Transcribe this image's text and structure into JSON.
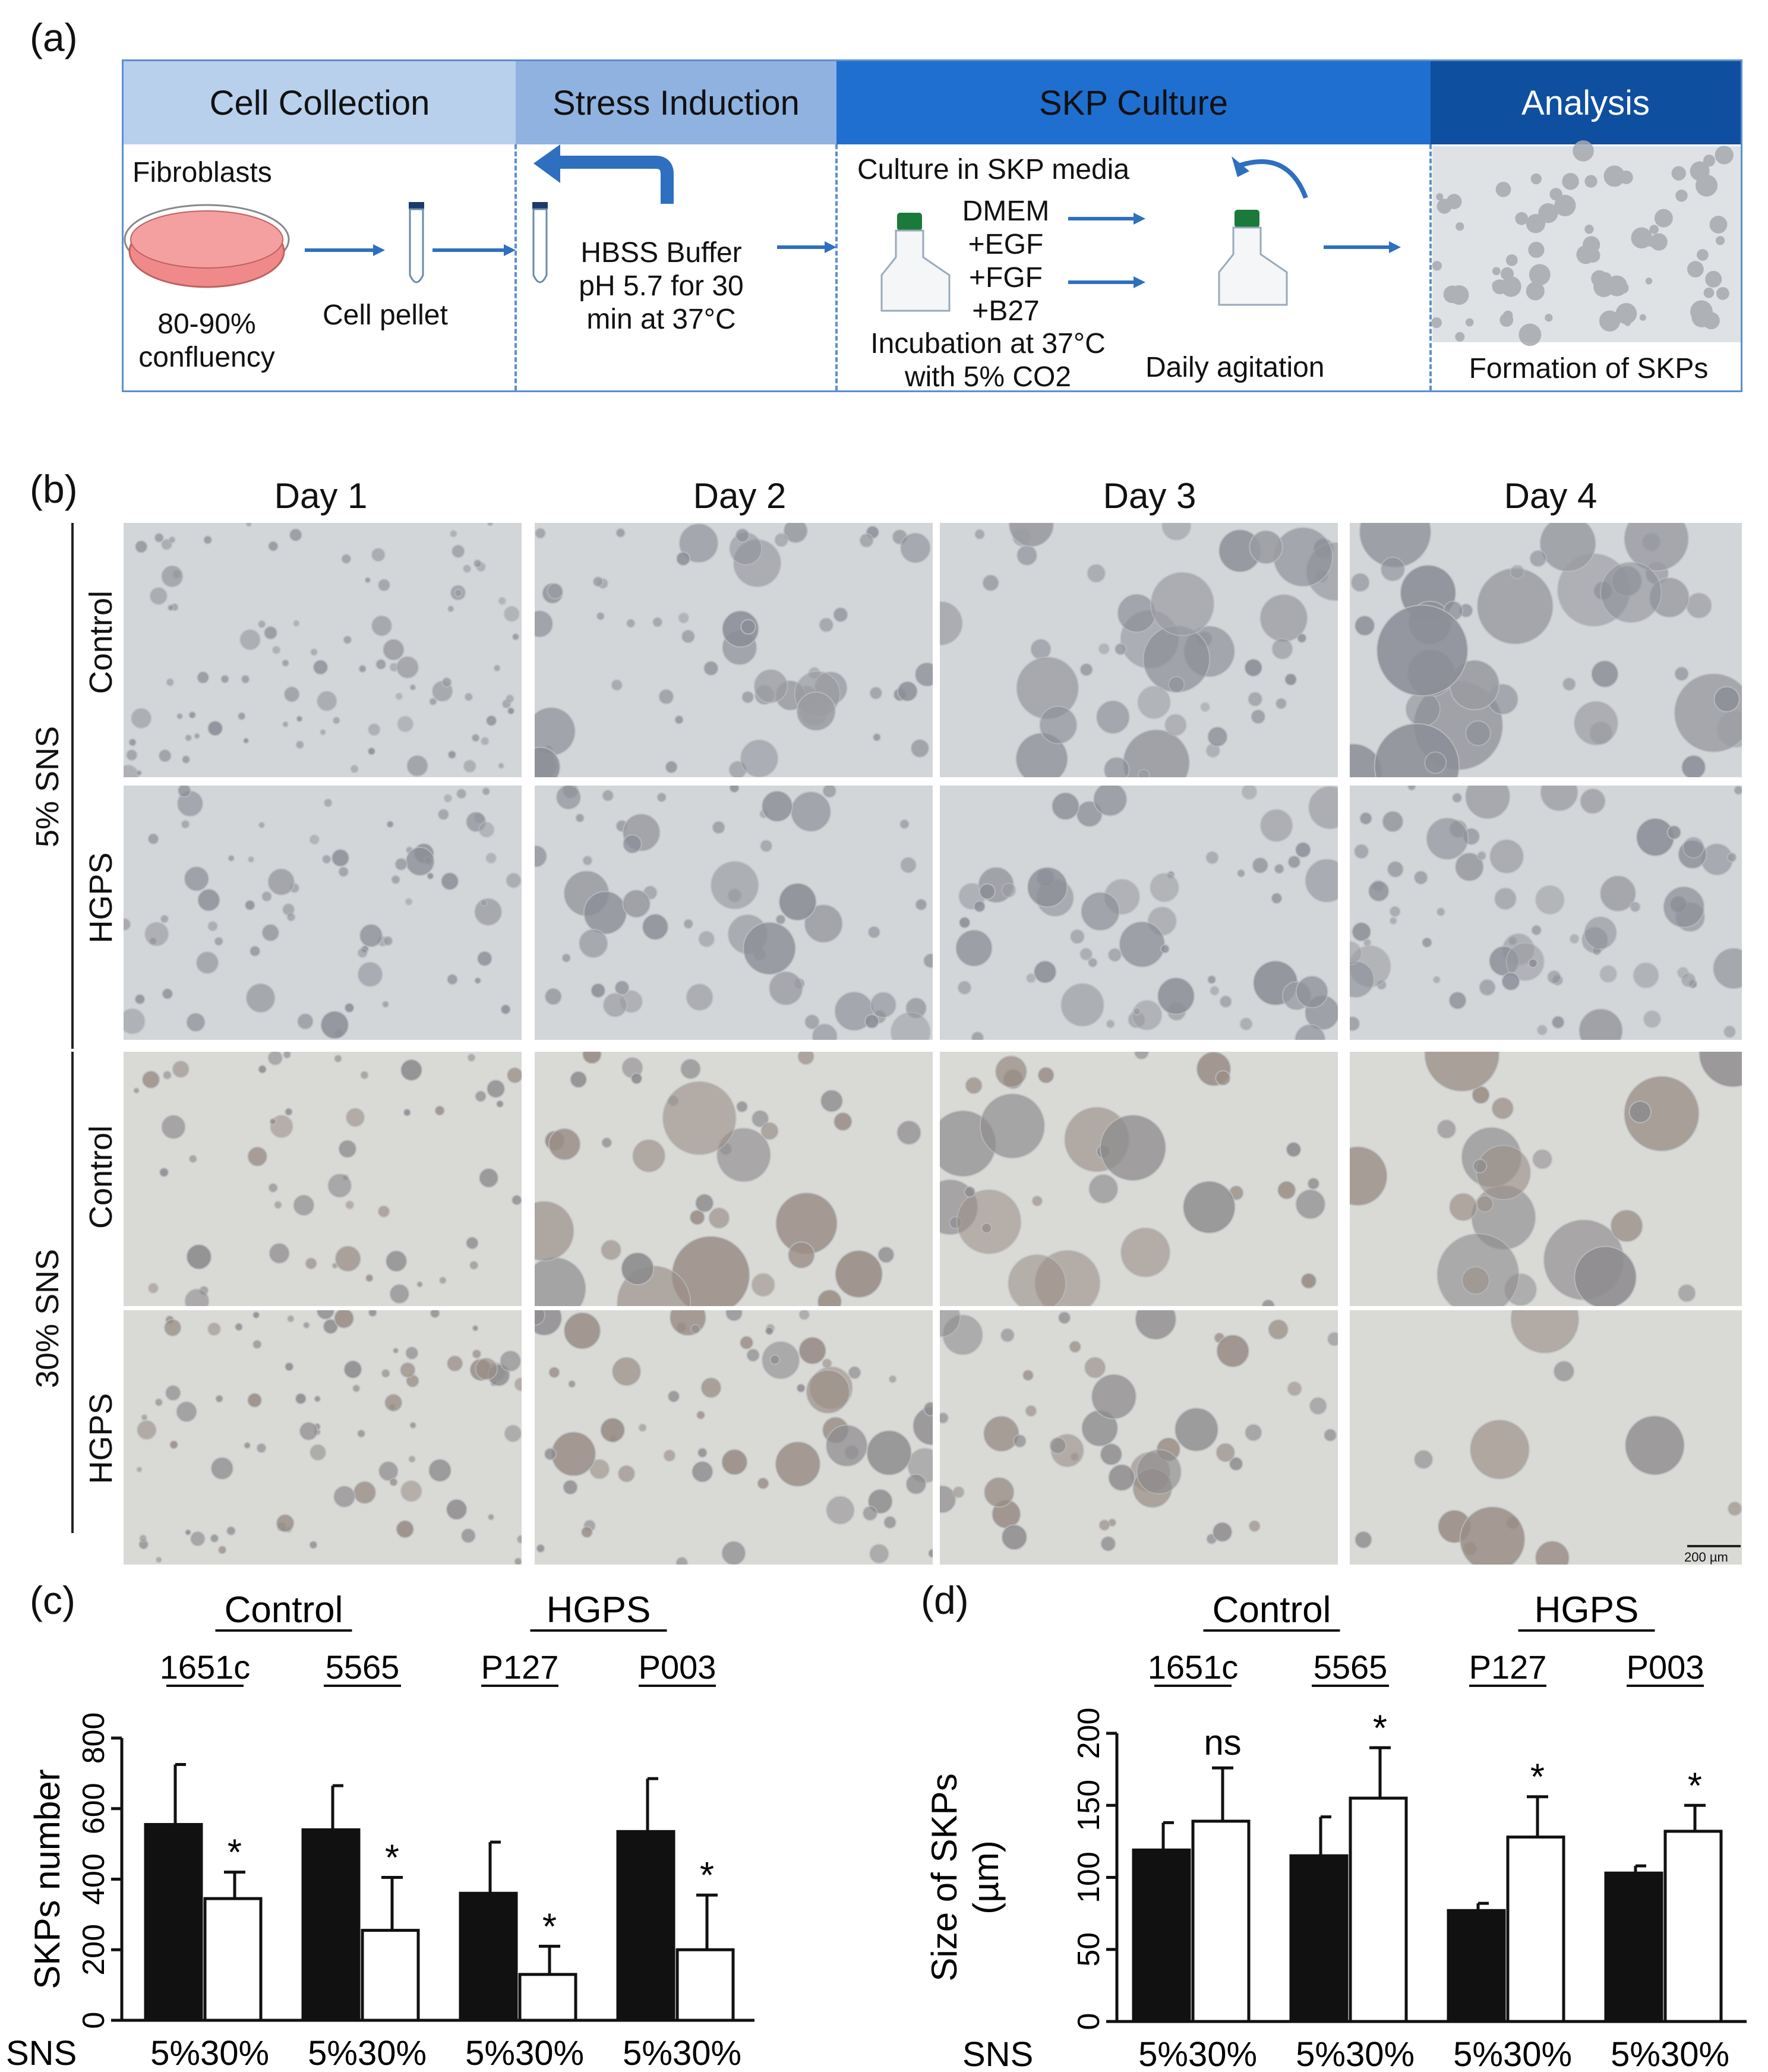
{
  "panel_a": {
    "label": "(a)",
    "headers": [
      "Cell Collection",
      "Stress Induction",
      "SKP Culture",
      "Analysis"
    ],
    "fibroblasts": "Fibroblasts",
    "confluency_line1": "80-90%",
    "confluency_line2": "confluency",
    "cell_pellet": "Cell pellet",
    "hbss_line1": "HBSS Buffer",
    "hbss_line2": "pH 5.7 for 30",
    "hbss_line3": "min at 37°C",
    "culture_media": "Culture in SKP media",
    "media_items": [
      "DMEM",
      "+EGF",
      "+FGF",
      "+B27"
    ],
    "incubation_line1": "Incubation at 37°C",
    "incubation_line2": "with 5% CO2",
    "daily_agitation": "Daily agitation",
    "formation": "Formation of  SKPs",
    "colors": {
      "header1": "#b8d0ec",
      "header2": "#8fb2e0",
      "header3": "#1f6fd0",
      "header4": "#0f4fa0",
      "arrow": "#2e6fc0",
      "dish": "#f08a8a",
      "cap": "#1a7a3a"
    }
  },
  "panel_b": {
    "label": "(b)",
    "days": [
      "Day 1",
      "Day 2",
      "Day 3",
      "Day 4"
    ],
    "groups": [
      "5% SNS",
      "30% SNS"
    ],
    "rows": [
      "Control",
      "HGPS",
      "Control",
      "HGPS"
    ],
    "scale_bar": "200 µm",
    "colors": {
      "background": "#d6d8d6",
      "colony": "#8a8a90",
      "colony_warm": "#9a8a80"
    }
  },
  "panel_c": {
    "label": "(c)",
    "groups": [
      "Control",
      "HGPS"
    ],
    "cell_lines": [
      "1651c",
      "5565",
      "P127",
      "P003"
    ],
    "sns_label": "SNS"
  },
  "panel_d": {
    "label": "(d)",
    "groups": [
      "Control",
      "HGPS"
    ],
    "cell_lines": [
      "1651c",
      "5565",
      "P127",
      "P003"
    ],
    "sns_label": "SNS"
  },
  "chart_data": [
    {
      "type": "bar",
      "categories": [
        "5%",
        "30%",
        "5%",
        "30%",
        "5%",
        "30%",
        "5%",
        "30%"
      ],
      "ylabel": "SKPs number",
      "ylim": [
        0,
        800
      ],
      "yticks": [
        0,
        200,
        400,
        600,
        800
      ],
      "bars": [
        {
          "line": "1651c",
          "sns": "5%",
          "value": 555,
          "error": 170,
          "fill": "black",
          "sig": ""
        },
        {
          "line": "1651c",
          "sns": "30%",
          "value": 345,
          "error": 75,
          "fill": "white",
          "sig": "*"
        },
        {
          "line": "5565",
          "sns": "5%",
          "value": 540,
          "error": 125,
          "fill": "black",
          "sig": ""
        },
        {
          "line": "5565",
          "sns": "30%",
          "value": 255,
          "error": 150,
          "fill": "white",
          "sig": "*"
        },
        {
          "line": "P127",
          "sns": "5%",
          "value": 360,
          "error": 145,
          "fill": "black",
          "sig": ""
        },
        {
          "line": "P127",
          "sns": "30%",
          "value": 130,
          "error": 80,
          "fill": "white",
          "sig": "*"
        },
        {
          "line": "P003",
          "sns": "5%",
          "value": 535,
          "error": 150,
          "fill": "black",
          "sig": ""
        },
        {
          "line": "P003",
          "sns": "30%",
          "value": 200,
          "error": 155,
          "fill": "white",
          "sig": "*"
        }
      ]
    },
    {
      "type": "bar",
      "categories": [
        "5%",
        "30%",
        "5%",
        "30%",
        "5%",
        "30%",
        "5%",
        "30%"
      ],
      "ylabel": "Size of SKPs",
      "ylabel_unit": "(µm)",
      "ylim": [
        0,
        200
      ],
      "yticks": [
        0,
        50,
        100,
        150,
        200
      ],
      "bars": [
        {
          "line": "1651c",
          "sns": "5%",
          "value": 119,
          "error": 19,
          "fill": "black",
          "sig": ""
        },
        {
          "line": "1651c",
          "sns": "30%",
          "value": 139,
          "error": 37,
          "fill": "white",
          "sig": "ns"
        },
        {
          "line": "5565",
          "sns": "5%",
          "value": 115,
          "error": 27,
          "fill": "black",
          "sig": ""
        },
        {
          "line": "5565",
          "sns": "30%",
          "value": 155,
          "error": 35,
          "fill": "white",
          "sig": "*"
        },
        {
          "line": "P127",
          "sns": "5%",
          "value": 77,
          "error": 5,
          "fill": "black",
          "sig": ""
        },
        {
          "line": "P127",
          "sns": "30%",
          "value": 128,
          "error": 28,
          "fill": "white",
          "sig": "*"
        },
        {
          "line": "P003",
          "sns": "5%",
          "value": 103,
          "error": 5,
          "fill": "black",
          "sig": ""
        },
        {
          "line": "P003",
          "sns": "30%",
          "value": 132,
          "error": 18,
          "fill": "white",
          "sig": "*"
        }
      ]
    }
  ]
}
